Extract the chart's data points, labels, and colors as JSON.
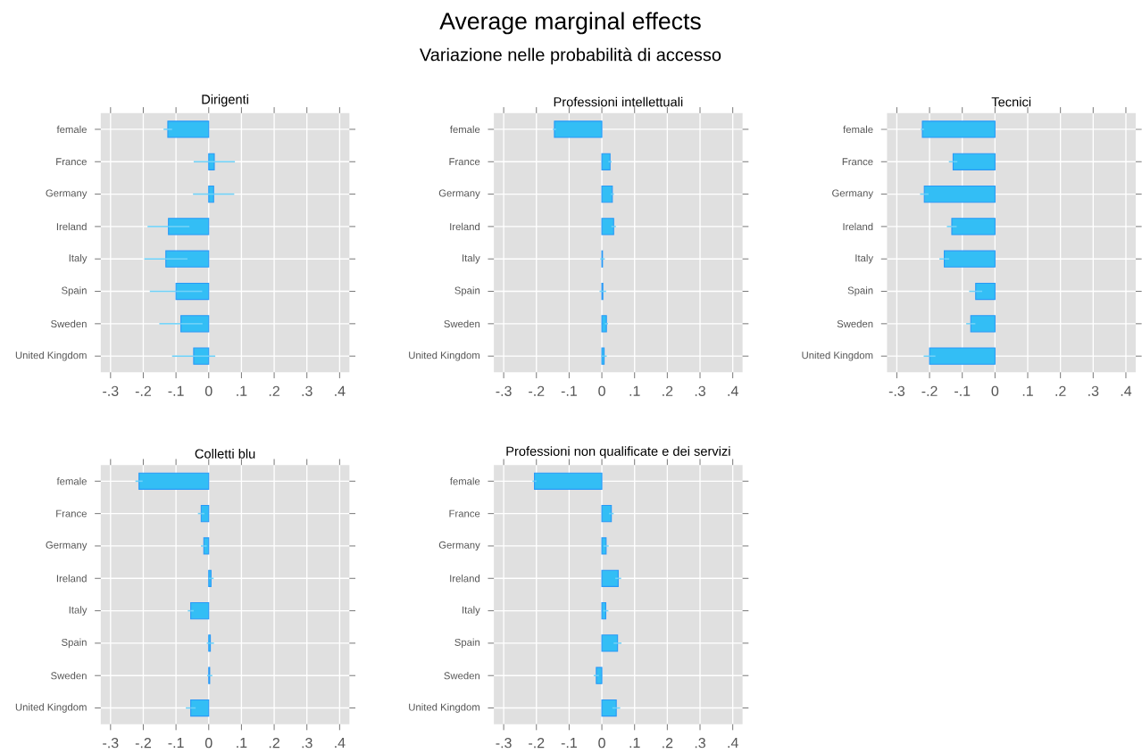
{
  "chart_data": [
    {
      "type": "bar",
      "orientation": "horizontal",
      "title": "Dirigenti",
      "annotations": [
        "Average marginal effects",
        "Variazione nelle probabilità di accesso"
      ],
      "categories": [
        "female",
        "France",
        "Germany",
        "Ireland",
        "Italy",
        "Spain",
        "Sweden",
        "United Kingdom"
      ],
      "values": [
        -0.125,
        0.017,
        0.015,
        -0.123,
        -0.131,
        -0.1,
        -0.085,
        -0.046
      ],
      "errors": [
        0.013,
        0.063,
        0.063,
        0.064,
        0.066,
        0.08,
        0.066,
        0.066
      ],
      "color": "#33bef5",
      "xlim": [
        -0.33,
        0.43
      ],
      "xticks": [
        {
          "value": -0.3,
          "label": "-.3"
        },
        {
          "value": -0.2,
          "label": "-.2"
        },
        {
          "value": -0.1,
          "label": "-.1"
        },
        0,
        {
          "value": 0.1,
          "label": ".1"
        },
        {
          "value": 0.2,
          "label": ".2"
        },
        {
          "value": 0.3,
          "label": ".3"
        },
        {
          "value": 0.4,
          "label": ".4"
        }
      ],
      "grid": true
    },
    {
      "type": "bar",
      "orientation": "horizontal",
      "title": "Professioni intellettuali",
      "categories": [
        "female",
        "France",
        "Germany",
        "Ireland",
        "Italy",
        "Spain",
        "Sweden",
        "United Kingdom"
      ],
      "values": [
        -0.145,
        0.025,
        0.032,
        0.036,
        0.002,
        0.003,
        0.014,
        0.007
      ],
      "errors": [
        0.005,
        0.005,
        0.005,
        0.007,
        0.007,
        0.01,
        0.005,
        0.008
      ],
      "color": "#33bef5",
      "xlim": [
        -0.33,
        0.43
      ],
      "xticks": [
        {
          "value": -0.3,
          "label": "-.3"
        },
        {
          "value": -0.2,
          "label": "-.2"
        },
        {
          "value": -0.1,
          "label": "-.1"
        },
        0,
        {
          "value": 0.1,
          "label": ".1"
        },
        {
          "value": 0.2,
          "label": ".2"
        },
        {
          "value": 0.3,
          "label": ".3"
        },
        {
          "value": 0.4,
          "label": ".4"
        }
      ],
      "grid": true
    },
    {
      "type": "bar",
      "orientation": "horizontal",
      "title": "Tecnici",
      "categories": [
        "female",
        "France",
        "Germany",
        "Ireland",
        "Italy",
        "Spain",
        "Sweden",
        "United Kingdom"
      ],
      "values": [
        -0.222,
        -0.128,
        -0.216,
        -0.132,
        -0.155,
        -0.059,
        -0.074,
        -0.2
      ],
      "errors": [
        0.005,
        0.013,
        0.013,
        0.015,
        0.015,
        0.02,
        0.014,
        0.018
      ],
      "color": "#33bef5",
      "xlim": [
        -0.33,
        0.43
      ],
      "xticks": [
        {
          "value": -0.3,
          "label": "-.3"
        },
        {
          "value": -0.2,
          "label": "-.2"
        },
        {
          "value": -0.1,
          "label": "-.1"
        },
        0,
        {
          "value": 0.1,
          "label": ".1"
        },
        {
          "value": 0.2,
          "label": ".2"
        },
        {
          "value": 0.3,
          "label": ".3"
        },
        {
          "value": 0.4,
          "label": ".4"
        }
      ],
      "grid": true
    },
    {
      "type": "bar",
      "orientation": "horizontal",
      "title": "Colletti blu",
      "categories": [
        "female",
        "France",
        "Germany",
        "Ireland",
        "Italy",
        "Spain",
        "Sweden",
        "United Kingdom"
      ],
      "values": [
        -0.213,
        -0.023,
        -0.015,
        0.007,
        -0.055,
        0.005,
        0.003,
        -0.055
      ],
      "errors": [
        0.011,
        0.01,
        0.009,
        0.008,
        0.009,
        0.011,
        0.008,
        0.015
      ],
      "color": "#33bef5",
      "xlim": [
        -0.33,
        0.43
      ],
      "xticks": [
        {
          "value": -0.3,
          "label": "-.3"
        },
        {
          "value": -0.2,
          "label": "-.2"
        },
        {
          "value": -0.1,
          "label": "-.1"
        },
        0,
        {
          "value": 0.1,
          "label": ".1"
        },
        {
          "value": 0.2,
          "label": ".2"
        },
        {
          "value": 0.3,
          "label": ".3"
        },
        {
          "value": 0.4,
          "label": ".4"
        }
      ],
      "grid": true
    },
    {
      "type": "bar",
      "orientation": "horizontal",
      "title": "Professioni non qualificate e dei servizi",
      "categories": [
        "female",
        "France",
        "Germany",
        "Ireland",
        "Italy",
        "Spain",
        "Sweden",
        "United Kingdom"
      ],
      "values": [
        -0.206,
        0.029,
        0.013,
        0.05,
        0.012,
        0.048,
        -0.017,
        0.044
      ],
      "errors": [
        0.006,
        0.007,
        0.008,
        0.009,
        0.008,
        0.012,
        0.008,
        0.012
      ],
      "color": "#33bef5",
      "xlim": [
        -0.33,
        0.43
      ],
      "xticks": [
        {
          "value": -0.3,
          "label": "-.3"
        },
        {
          "value": -0.2,
          "label": "-.2"
        },
        {
          "value": -0.1,
          "label": "-.1"
        },
        0,
        {
          "value": 0.1,
          "label": ".1"
        },
        {
          "value": 0.2,
          "label": ".2"
        },
        {
          "value": 0.3,
          "label": ".3"
        },
        {
          "value": 0.4,
          "label": ".4"
        }
      ],
      "grid": true
    }
  ]
}
